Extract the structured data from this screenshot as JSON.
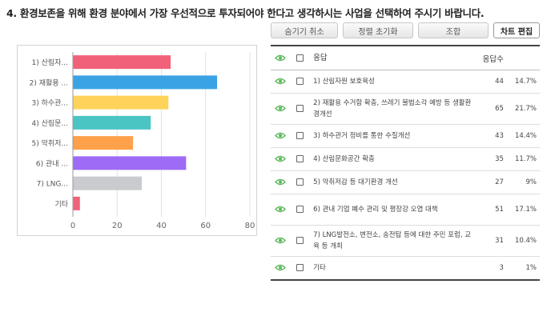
{
  "question": {
    "title": "4. 환경보존을 위해 환경 분야에서 가장 우선적으로 투자되어야 한다고 생각하시는 사업을 선택하여 주시기 바랍니다."
  },
  "toolbar": {
    "hide_cancel": "숨기기 취소",
    "sort_reset": "정렬 초기화",
    "combine": "조합",
    "chart_edit": "차트 편집"
  },
  "table": {
    "header_response": "응답",
    "header_count": "응답수",
    "rows": [
      {
        "label": "1) 산림자원 보호육성",
        "count": "44",
        "percent": "14.7%"
      },
      {
        "label": "2) 재활용 수거함 확충, 쓰레기 불법소각 예방 등 생활환경개선",
        "count": "65",
        "percent": "21.7%"
      },
      {
        "label": "3) 하수관거 정비를 통한 수질개선",
        "count": "43",
        "percent": "14.4%"
      },
      {
        "label": "4) 산림문화공간 확충",
        "count": "35",
        "percent": "11.7%"
      },
      {
        "label": "5) 악취저감 등 대기환경 개선",
        "count": "27",
        "percent": "9%"
      },
      {
        "label": "6) 관내 기업 폐수 관리 및 평장강 오염 대책",
        "count": "51",
        "percent": "17.1%"
      },
      {
        "label": "7) LNG발전소, 변전소, 송전탑 등에 대한 주민 포럼, 교육 등 개최",
        "count": "31",
        "percent": "10.4%"
      },
      {
        "label": "기타",
        "count": "3",
        "percent": "1%"
      }
    ]
  },
  "chart_data": {
    "type": "bar",
    "orientation": "horizontal",
    "categories": [
      "1) 산림자...",
      "2) 재활용 ...",
      "3) 하수관...",
      "4) 산림문...",
      "5) 악취저...",
      "6) 관내 ...",
      "7) LNG...",
      "기타"
    ],
    "values": [
      44,
      65,
      43,
      35,
      27,
      51,
      31,
      3
    ],
    "colors": [
      "#f2617a",
      "#3aa3e3",
      "#fdd35a",
      "#4bc4c4",
      "#ffa04a",
      "#9d6bf5",
      "#c9cbcf",
      "#f2617a"
    ],
    "xlim": [
      0,
      80
    ],
    "xticks": [
      "0",
      "20",
      "40",
      "60",
      "80"
    ],
    "grid": true
  },
  "icons": {
    "eye_color": "#5cb85c"
  }
}
